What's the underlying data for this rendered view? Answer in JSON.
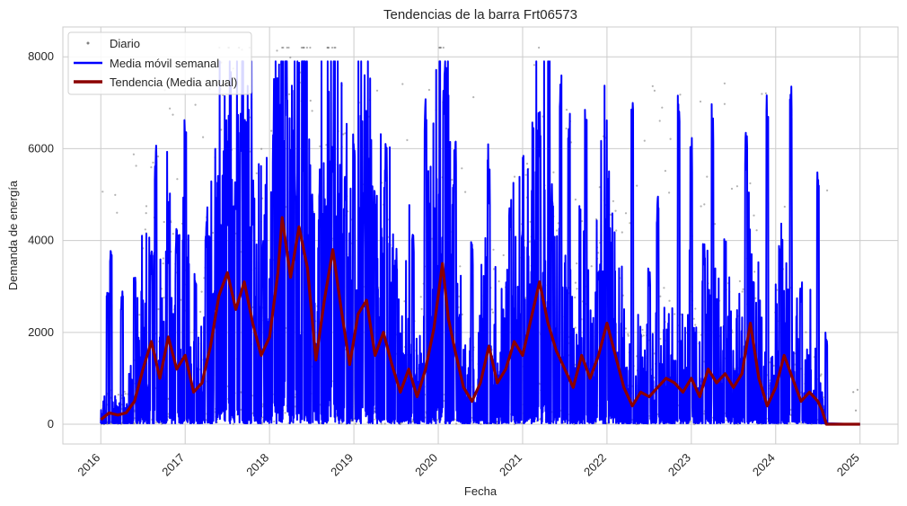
{
  "chart_data": {
    "type": "line",
    "title": "Tendencias de la barra Frt06573",
    "xlabel": "Fecha",
    "ylabel": "Demanda de energía",
    "x_ticks": [
      "2016",
      "2017",
      "2018",
      "2019",
      "2020",
      "2021",
      "2022",
      "2023",
      "2024",
      "2025"
    ],
    "y_ticks": [
      "0",
      "2000",
      "4000",
      "6000",
      "8000"
    ],
    "xlim": [
      2015.55,
      2025.45
    ],
    "ylim": [
      -430,
      8650
    ],
    "grid": true,
    "legend_position": "top-left",
    "colors": {
      "daily": "#808080",
      "weekly": "#0000ff",
      "annual": "#8b0000"
    },
    "series": [
      {
        "name": "Diario",
        "style": "scatter",
        "color": "#808080"
      },
      {
        "name": "Media móvil semanal",
        "style": "line",
        "color": "#0000ff",
        "peaks": [
          {
            "x": 2016.08,
            "y": 3000
          },
          {
            "x": 2016.12,
            "y": 3800
          },
          {
            "x": 2016.25,
            "y": 2900
          },
          {
            "x": 2016.4,
            "y": 3300
          },
          {
            "x": 2016.6,
            "y": 3800
          },
          {
            "x": 2016.65,
            "y": 6100
          },
          {
            "x": 2016.8,
            "y": 4000
          },
          {
            "x": 2016.9,
            "y": 4300
          },
          {
            "x": 2017.0,
            "y": 6700
          },
          {
            "x": 2017.12,
            "y": 3500
          },
          {
            "x": 2017.25,
            "y": 4500
          },
          {
            "x": 2017.35,
            "y": 2900
          },
          {
            "x": 2017.5,
            "y": 4800
          },
          {
            "x": 2017.6,
            "y": 5300
          },
          {
            "x": 2017.66,
            "y": 6800
          },
          {
            "x": 2017.8,
            "y": 5100
          },
          {
            "x": 2017.92,
            "y": 4000
          },
          {
            "x": 2018.05,
            "y": 6600
          },
          {
            "x": 2018.2,
            "y": 7900
          },
          {
            "x": 2018.3,
            "y": 5700
          },
          {
            "x": 2018.4,
            "y": 6300
          },
          {
            "x": 2018.5,
            "y": 5100
          },
          {
            "x": 2018.6,
            "y": 5800
          },
          {
            "x": 2018.75,
            "y": 6200
          },
          {
            "x": 2018.9,
            "y": 5700
          },
          {
            "x": 2019.0,
            "y": 6700
          },
          {
            "x": 2019.12,
            "y": 5200
          },
          {
            "x": 2019.25,
            "y": 5300
          },
          {
            "x": 2019.38,
            "y": 6200
          },
          {
            "x": 2019.5,
            "y": 3900
          },
          {
            "x": 2019.7,
            "y": 4200
          },
          {
            "x": 2019.85,
            "y": 7100
          },
          {
            "x": 2020.07,
            "y": 7800
          },
          {
            "x": 2020.2,
            "y": 6500
          },
          {
            "x": 2020.4,
            "y": 4000
          },
          {
            "x": 2020.6,
            "y": 5600
          },
          {
            "x": 2020.85,
            "y": 5000
          },
          {
            "x": 2021.0,
            "y": 4500
          },
          {
            "x": 2021.2,
            "y": 6800
          },
          {
            "x": 2021.35,
            "y": 5000
          },
          {
            "x": 2021.45,
            "y": 7600
          },
          {
            "x": 2021.55,
            "y": 6800
          },
          {
            "x": 2021.75,
            "y": 6900
          },
          {
            "x": 2021.9,
            "y": 3700
          },
          {
            "x": 2022.0,
            "y": 4000
          },
          {
            "x": 2022.3,
            "y": 7000
          },
          {
            "x": 2022.5,
            "y": 3400
          },
          {
            "x": 2022.6,
            "y": 5100
          },
          {
            "x": 2022.85,
            "y": 7200
          },
          {
            "x": 2023.0,
            "y": 6300
          },
          {
            "x": 2023.15,
            "y": 4000
          },
          {
            "x": 2023.25,
            "y": 7100
          },
          {
            "x": 2023.4,
            "y": 4000
          },
          {
            "x": 2023.65,
            "y": 6400
          },
          {
            "x": 2023.9,
            "y": 7200
          },
          {
            "x": 2024.05,
            "y": 3900
          },
          {
            "x": 2024.18,
            "y": 7500
          },
          {
            "x": 2024.3,
            "y": 3100
          },
          {
            "x": 2024.5,
            "y": 5500
          },
          {
            "x": 2024.6,
            "y": 2000
          }
        ]
      },
      {
        "name": "Tendencia (Media anual)",
        "style": "line",
        "color": "#8b0000",
        "points": [
          [
            2016.0,
            100
          ],
          [
            2016.1,
            250
          ],
          [
            2016.2,
            200
          ],
          [
            2016.3,
            250
          ],
          [
            2016.4,
            500
          ],
          [
            2016.5,
            1200
          ],
          [
            2016.6,
            1800
          ],
          [
            2016.7,
            1000
          ],
          [
            2016.8,
            1900
          ],
          [
            2016.9,
            1200
          ],
          [
            2017.0,
            1500
          ],
          [
            2017.1,
            700
          ],
          [
            2017.2,
            900
          ],
          [
            2017.3,
            1700
          ],
          [
            2017.4,
            2800
          ],
          [
            2017.5,
            3300
          ],
          [
            2017.6,
            2500
          ],
          [
            2017.7,
            3100
          ],
          [
            2017.8,
            2200
          ],
          [
            2017.9,
            1500
          ],
          [
            2018.0,
            1900
          ],
          [
            2018.1,
            3300
          ],
          [
            2018.15,
            4500
          ],
          [
            2018.25,
            3200
          ],
          [
            2018.35,
            4300
          ],
          [
            2018.45,
            3400
          ],
          [
            2018.55,
            1400
          ],
          [
            2018.65,
            2700
          ],
          [
            2018.75,
            3800
          ],
          [
            2018.85,
            2500
          ],
          [
            2018.95,
            1300
          ],
          [
            2019.05,
            2400
          ],
          [
            2019.15,
            2700
          ],
          [
            2019.25,
            1500
          ],
          [
            2019.35,
            2000
          ],
          [
            2019.45,
            1300
          ],
          [
            2019.55,
            700
          ],
          [
            2019.65,
            1200
          ],
          [
            2019.75,
            600
          ],
          [
            2019.85,
            1200
          ],
          [
            2019.95,
            2100
          ],
          [
            2020.05,
            3500
          ],
          [
            2020.12,
            2300
          ],
          [
            2020.2,
            1600
          ],
          [
            2020.3,
            800
          ],
          [
            2020.4,
            500
          ],
          [
            2020.5,
            900
          ],
          [
            2020.6,
            1700
          ],
          [
            2020.7,
            900
          ],
          [
            2020.8,
            1200
          ],
          [
            2020.9,
            1800
          ],
          [
            2021.0,
            1500
          ],
          [
            2021.1,
            2300
          ],
          [
            2021.2,
            3100
          ],
          [
            2021.3,
            2200
          ],
          [
            2021.4,
            1600
          ],
          [
            2021.5,
            1200
          ],
          [
            2021.6,
            800
          ],
          [
            2021.7,
            1500
          ],
          [
            2021.8,
            1000
          ],
          [
            2021.9,
            1500
          ],
          [
            2022.0,
            2200
          ],
          [
            2022.1,
            1500
          ],
          [
            2022.2,
            800
          ],
          [
            2022.3,
            400
          ],
          [
            2022.4,
            700
          ],
          [
            2022.5,
            600
          ],
          [
            2022.6,
            800
          ],
          [
            2022.7,
            1000
          ],
          [
            2022.8,
            900
          ],
          [
            2022.9,
            700
          ],
          [
            2023.0,
            1000
          ],
          [
            2023.1,
            600
          ],
          [
            2023.2,
            1200
          ],
          [
            2023.3,
            900
          ],
          [
            2023.4,
            1100
          ],
          [
            2023.5,
            800
          ],
          [
            2023.6,
            1100
          ],
          [
            2023.7,
            2200
          ],
          [
            2023.8,
            1000
          ],
          [
            2023.9,
            400
          ],
          [
            2024.0,
            800
          ],
          [
            2024.1,
            1500
          ],
          [
            2024.2,
            1000
          ],
          [
            2024.3,
            500
          ],
          [
            2024.4,
            700
          ],
          [
            2024.5,
            500
          ],
          [
            2024.55,
            300
          ],
          [
            2024.6,
            0
          ],
          [
            2025.0,
            0
          ]
        ]
      }
    ]
  }
}
